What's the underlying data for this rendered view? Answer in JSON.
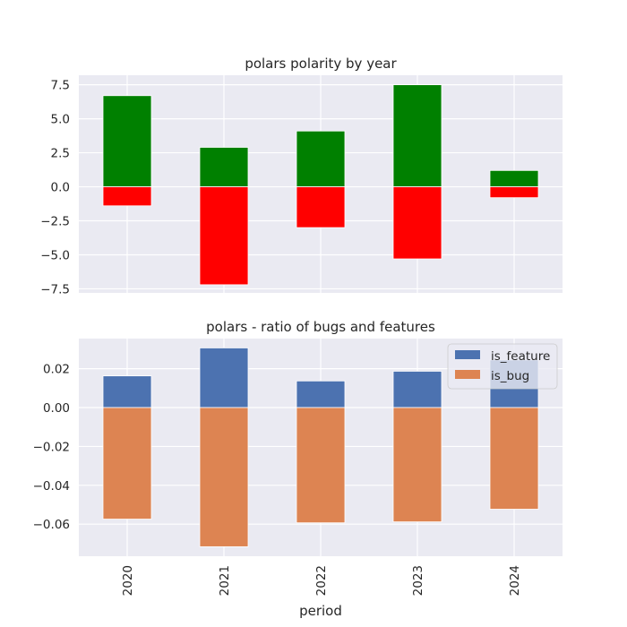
{
  "colors": {
    "positive": "#008000",
    "negative": "#ff0000",
    "is_feature": "#4c72b0",
    "is_bug": "#dd8452",
    "axes_bg": "#eaeaf2",
    "grid": "#ffffff"
  },
  "chart_data": [
    {
      "type": "bar",
      "title": "polars polarity by year",
      "categories": [
        "2020",
        "2021",
        "2022",
        "2023",
        "2024"
      ],
      "stacked": true,
      "series": [
        {
          "values": [
            6.7,
            2.9,
            4.1,
            7.5,
            1.2
          ]
        },
        {
          "values": [
            -1.4,
            -7.2,
            -3.0,
            -5.3,
            -0.8
          ]
        }
      ],
      "ylim": [
        -7.8,
        8.2
      ],
      "yticks": [
        -7.5,
        -5.0,
        -2.5,
        0.0,
        2.5,
        5.0,
        7.5
      ],
      "ytick_labels": [
        "−7.5",
        "−5.0",
        "−2.5",
        "0.0",
        "2.5",
        "5.0",
        "7.5"
      ],
      "grid": true
    },
    {
      "type": "bar",
      "title": "polars - ratio of bugs and features",
      "categories": [
        "2020",
        "2021",
        "2022",
        "2023",
        "2024"
      ],
      "stacked": true,
      "series": [
        {
          "name": "is_feature",
          "values": [
            0.0163,
            0.0307,
            0.0137,
            0.0187,
            0.0245
          ]
        },
        {
          "name": "is_bug",
          "values": [
            -0.0574,
            -0.0716,
            -0.0593,
            -0.0588,
            -0.0523
          ]
        }
      ],
      "ylim": [
        -0.0765,
        0.0355
      ],
      "yticks": [
        -0.06,
        -0.04,
        -0.02,
        0.0,
        0.02
      ],
      "ytick_labels": [
        "−0.06",
        "−0.04",
        "−0.02",
        "0.00",
        "0.02"
      ],
      "xlabel": "period",
      "legend": "top-right",
      "grid": true
    }
  ]
}
